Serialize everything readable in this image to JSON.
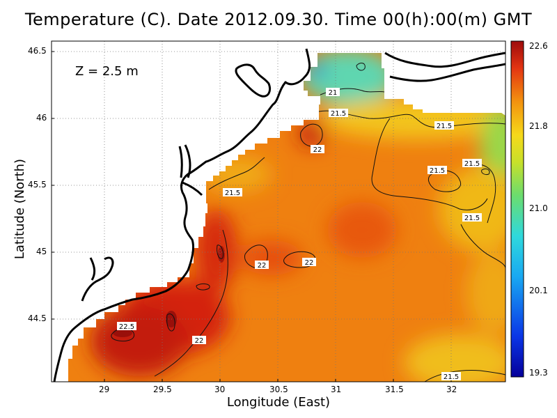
{
  "title": "Temperature (C). Date 2012.09.30. Time 00(h):00(m) GMT",
  "xlabel": "Longitude (East)",
  "ylabel": "Latitude (North)",
  "depth_label": "Z = 2.5 m",
  "x_ticks": [
    "29",
    "29.5",
    "30",
    "30.5",
    "31",
    "31.5",
    "32"
  ],
  "y_ticks": [
    "46.5",
    "46",
    "45.5",
    "45",
    "44.5"
  ],
  "colorbar_ticks": [
    "22.6",
    "21.8",
    "21.0",
    "20.1",
    "19.3"
  ],
  "contour_labels": [
    "21",
    "21.5",
    "21.5",
    "22",
    "21.5",
    "21.5",
    "21.5",
    "21.5",
    "22",
    "22",
    "22.5",
    "22",
    "21.5"
  ],
  "colors": {
    "hot": "#b0140a",
    "warm": "#e8400f",
    "orange": "#f07f12",
    "yellow": "#f5cf1a",
    "green": "#5fd47a",
    "cyan": "#33d8dc",
    "blue": "#1a3fd0",
    "navy": "#05009a"
  },
  "chart_data": {
    "type": "heatmap",
    "title": "Temperature (C). Date 2012.09.30. Time 00(h):00(m) GMT",
    "xlabel": "Longitude (East)",
    "ylabel": "Latitude (North)",
    "xlim": [
      28.55,
      32.45
    ],
    "ylim": [
      44.05,
      46.55
    ],
    "colorbar_range": [
      19.3,
      22.6
    ],
    "grid": true
  }
}
